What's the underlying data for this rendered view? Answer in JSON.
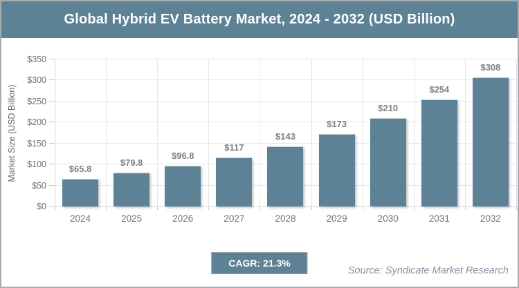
{
  "page": {
    "title": "Global Hybrid EV Battery Market, 2024 - 2032 (USD Billion)",
    "cagr_label": "CAGR: 21.3%",
    "source": "Source: Syndicate Market Research"
  },
  "chart_data": {
    "type": "bar",
    "title": "Global Hybrid EV Battery Market, 2024 - 2032 (USD Billion)",
    "categories": [
      "2024",
      "2025",
      "2026",
      "2027",
      "2028",
      "2029",
      "2030",
      "2031",
      "2032"
    ],
    "values": [
      65.8,
      79.8,
      96.8,
      117,
      143,
      173,
      210,
      254,
      308
    ],
    "value_labels": [
      "$65.8",
      "$79.8",
      "$96.8",
      "$117",
      "$143",
      "$173",
      "$210",
      "$254",
      "$308"
    ],
    "xlabel": "",
    "ylabel": "Market Size (USD Billion)",
    "ylim": [
      0,
      350
    ],
    "ytick_step": 50,
    "ytick_labels": [
      "$0",
      "$50",
      "$100",
      "$150",
      "$200",
      "$250",
      "$300",
      "$350"
    ],
    "grid": true,
    "legend": false,
    "cagr": "21.3%"
  },
  "colors": {
    "accent": "#5D8195",
    "bar": "#5D8195",
    "value_label": "#7d7f82",
    "axis_text": "#6f7174",
    "gridline": "#e6e6e8",
    "source_text": "#8693a3",
    "title_text": "#ffffff"
  }
}
